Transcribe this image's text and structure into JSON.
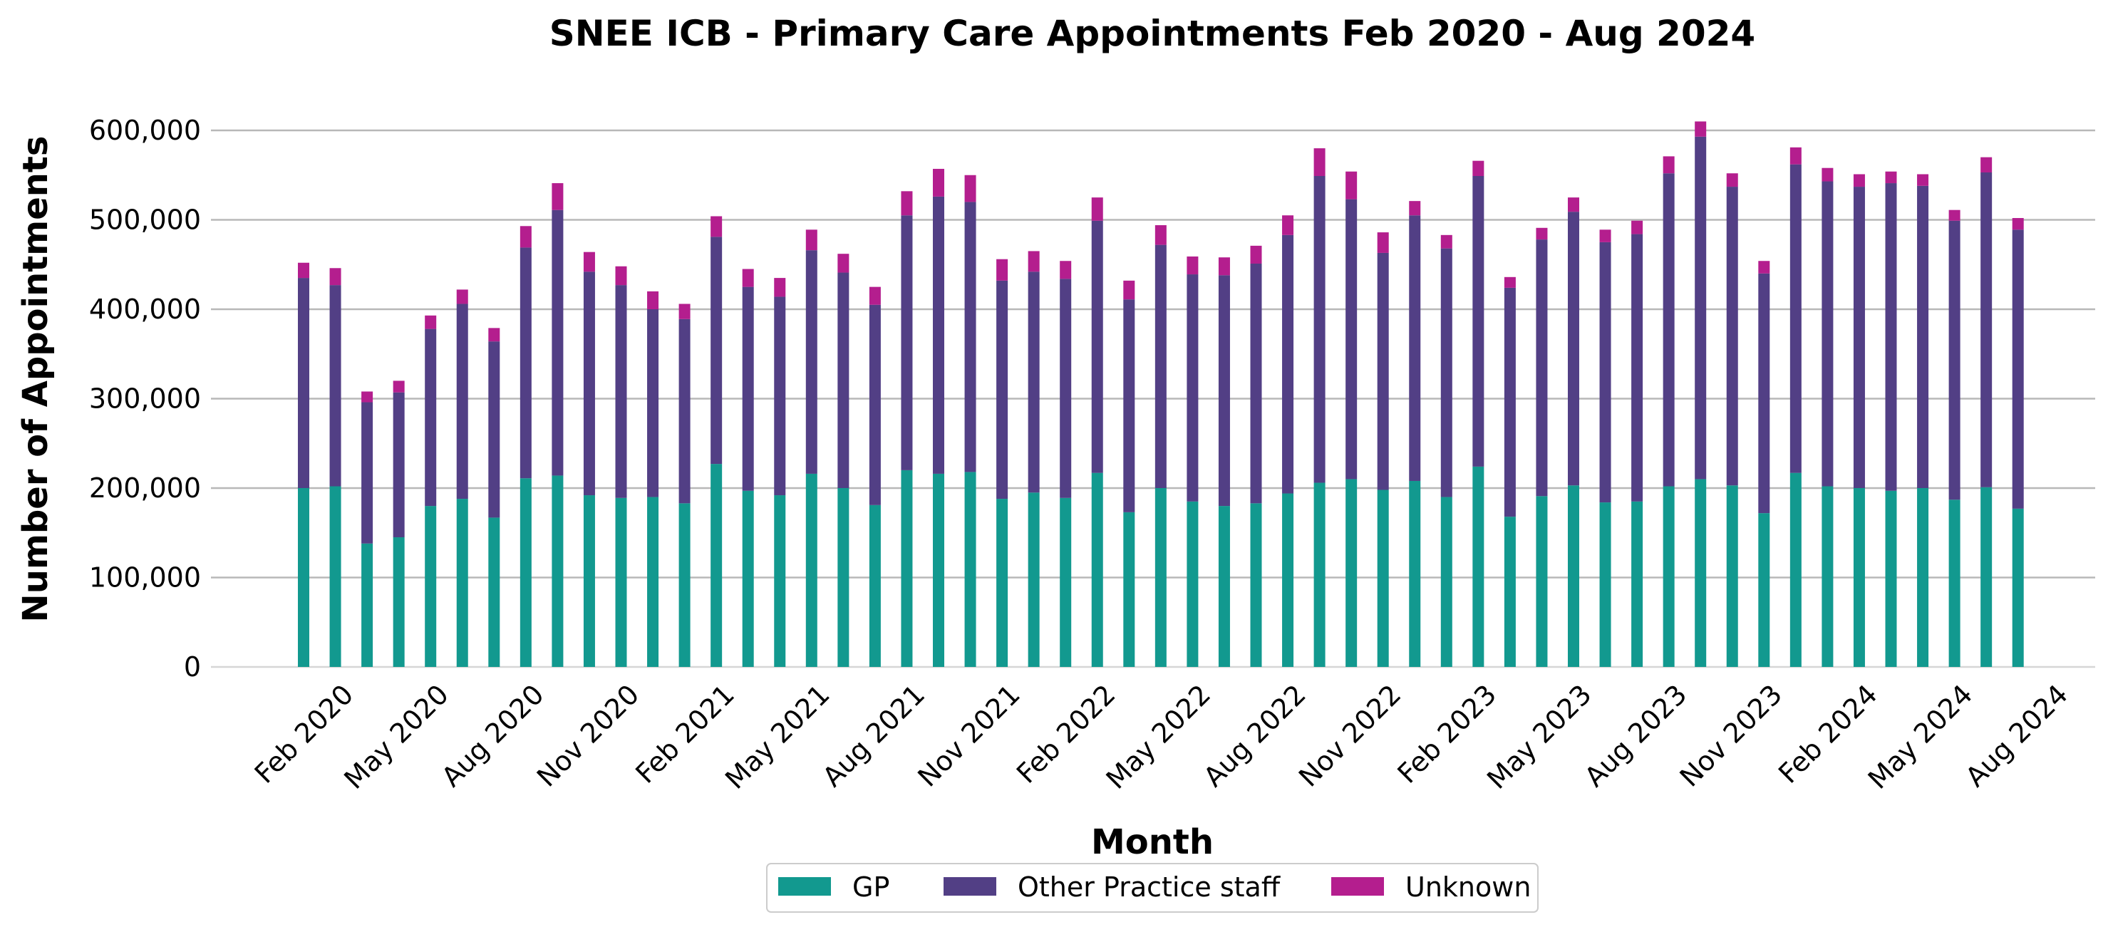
{
  "chart_data": {
    "type": "bar",
    "stacked": true,
    "title": "SNEE ICB - Primary Care Appointments Feb 2020 - Aug 2024",
    "xlabel": "Month",
    "ylabel": "Number of Appointments",
    "ylim": [
      0,
      620000
    ],
    "yticks": [
      0,
      100000,
      200000,
      300000,
      400000,
      500000,
      600000
    ],
    "ytick_labels": [
      "0",
      "100,000",
      "200,000",
      "300,000",
      "400,000",
      "500,000",
      "600,000"
    ],
    "grid": "horizontal",
    "legend_position": "bottom-center",
    "x_tick_labels": [
      "Feb 2020",
      "May 2020",
      "Aug 2020",
      "Nov 2020",
      "Feb 2021",
      "May 2021",
      "Aug 2021",
      "Nov 2021",
      "Feb 2022",
      "May 2022",
      "Aug 2022",
      "Nov 2022",
      "Feb 2023",
      "May 2023",
      "Aug 2023",
      "Nov 2023",
      "Feb 2024",
      "May 2024",
      "Aug 2024"
    ],
    "x_tick_every": 3,
    "categories": [
      "Feb 2020",
      "Mar 2020",
      "Apr 2020",
      "May 2020",
      "Jun 2020",
      "Jul 2020",
      "Aug 2020",
      "Sep 2020",
      "Oct 2020",
      "Nov 2020",
      "Dec 2020",
      "Jan 2021",
      "Feb 2021",
      "Mar 2021",
      "Apr 2021",
      "May 2021",
      "Jun 2021",
      "Jul 2021",
      "Aug 2021",
      "Sep 2021",
      "Oct 2021",
      "Nov 2021",
      "Dec 2021",
      "Jan 2022",
      "Feb 2022",
      "Mar 2022",
      "Apr 2022",
      "May 2022",
      "Jun 2022",
      "Jul 2022",
      "Aug 2022",
      "Sep 2022",
      "Oct 2022",
      "Nov 2022",
      "Dec 2022",
      "Jan 2023",
      "Feb 2023",
      "Mar 2023",
      "Apr 2023",
      "May 2023",
      "Jun 2023",
      "Jul 2023",
      "Aug 2023",
      "Sep 2023",
      "Oct 2023",
      "Nov 2023",
      "Dec 2023",
      "Jan 2024",
      "Feb 2024",
      "Mar 2024",
      "Apr 2024",
      "May 2024",
      "Jun 2024",
      "Jul 2024",
      "Aug 2024"
    ],
    "series": [
      {
        "name": "GP",
        "color": "#12998f",
        "values": [
          200000,
          202000,
          138000,
          145000,
          180000,
          188000,
          167000,
          211000,
          214000,
          192000,
          189000,
          190000,
          183000,
          227000,
          197000,
          192000,
          216000,
          200000,
          181000,
          220000,
          216000,
          218000,
          188000,
          195000,
          189000,
          217000,
          173000,
          200000,
          185000,
          180000,
          183000,
          194000,
          206000,
          210000,
          198000,
          208000,
          190000,
          224000,
          168000,
          191000,
          203000,
          184000,
          185000,
          202000,
          210000,
          203000,
          172000,
          217000,
          202000,
          200000,
          197000,
          200000,
          187000,
          201000,
          177000
        ]
      },
      {
        "name": "Other Practice staff",
        "color": "#523f85",
        "values": [
          235000,
          225000,
          158000,
          162000,
          198000,
          218000,
          197000,
          258000,
          297000,
          250000,
          238000,
          210000,
          206000,
          254000,
          228000,
          222000,
          250000,
          241000,
          224000,
          285000,
          310000,
          302000,
          244000,
          247000,
          245000,
          282000,
          238000,
          272000,
          254000,
          258000,
          268000,
          289000,
          343000,
          313000,
          265000,
          297000,
          278000,
          325000,
          256000,
          287000,
          306000,
          291000,
          299000,
          350000,
          383000,
          334000,
          268000,
          345000,
          341000,
          337000,
          344000,
          338000,
          312000,
          352000,
          312000
        ]
      },
      {
        "name": "Unknown",
        "color": "#b41e8e",
        "values": [
          17000,
          19000,
          12000,
          13000,
          15000,
          16000,
          15000,
          24000,
          30000,
          22000,
          21000,
          20000,
          17000,
          23000,
          20000,
          21000,
          23000,
          21000,
          20000,
          27000,
          31000,
          30000,
          24000,
          23000,
          20000,
          26000,
          21000,
          22000,
          20000,
          20000,
          20000,
          22000,
          31000,
          31000,
          23000,
          16000,
          15000,
          17000,
          12000,
          13000,
          16000,
          14000,
          15000,
          19000,
          17000,
          15000,
          14000,
          19000,
          15000,
          14000,
          13000,
          13000,
          12000,
          17000,
          13000
        ]
      }
    ]
  }
}
